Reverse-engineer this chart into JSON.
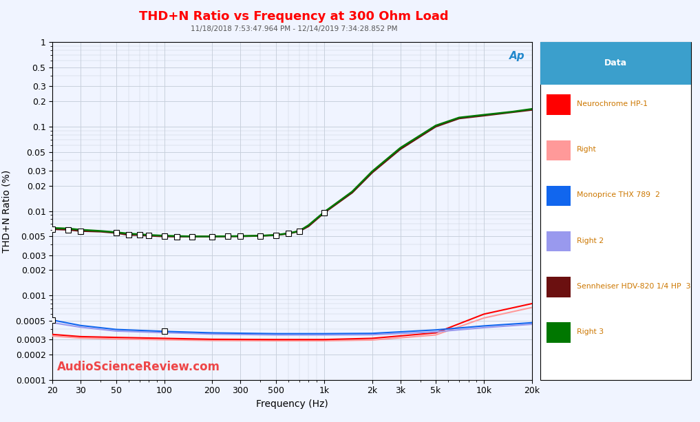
{
  "title": "THD+N Ratio vs Frequency at 300 Ohm Load",
  "title_color": "#FF0000",
  "subtitle": "11/18/2018 7:53:47.964 PM - 12/14/2019 7:34:28.852 PM",
  "subtitle_color": "#555555",
  "xlabel": "Frequency (Hz)",
  "ylabel": "THD+N Ratio (%)",
  "bg_color": "#F0F4FF",
  "grid_color": "#C8D0DC",
  "watermark": "AudioScienceReview.com",
  "watermark_color": "#EE3333",
  "ylim_log": [
    -4,
    0
  ],
  "xlim": [
    20,
    20000
  ],
  "yticks": [
    0.0001,
    0.0002,
    0.0003,
    0.0005,
    0.001,
    0.002,
    0.003,
    0.005,
    0.01,
    0.02,
    0.03,
    0.05,
    0.1,
    0.2,
    0.3,
    0.5,
    1.0
  ],
  "ytick_labels": [
    "0.0001",
    "0.0002",
    "0.0003",
    "0.0005",
    "0.001",
    "0.002",
    "0.003",
    "0.005",
    "0.01",
    "0.02",
    "0.03",
    "0.05",
    "0.1",
    "0.2",
    "0.3",
    "0.5",
    "1"
  ],
  "xticks": [
    20,
    30,
    50,
    100,
    200,
    300,
    500,
    1000,
    2000,
    3000,
    5000,
    10000,
    20000
  ],
  "xtick_labels": [
    "20",
    "30",
    "50",
    "100",
    "200",
    "300",
    "500",
    "1k",
    "2k",
    "3k",
    "5k",
    "10k",
    "20k"
  ],
  "legend_title": "Data",
  "legend_header_color": "#3B9FCC",
  "legend_text_color": "#CC7700",
  "legend_entries": [
    {
      "label": "Neurochrome HP-1",
      "color": "#FF0000"
    },
    {
      "label": "Right",
      "color": "#FF9999"
    },
    {
      "label": "Monoprice THX 789  2",
      "color": "#1166EE"
    },
    {
      "label": "Right 2",
      "color": "#9999EE"
    },
    {
      "label": "Sennheiser HDV-820 1/4 HP  3",
      "color": "#6B1010"
    },
    {
      "label": "Right 3",
      "color": "#007700"
    }
  ],
  "series": {
    "sennheiser_R": {
      "color": "#007700",
      "lw": 1.8,
      "zorder": 4,
      "freqs": [
        20,
        25,
        30,
        40,
        50,
        60,
        70,
        80,
        100,
        120,
        150,
        200,
        250,
        300,
        400,
        500,
        600,
        700,
        800,
        1000,
        1500,
        2000,
        3000,
        5000,
        7000,
        10000,
        15000,
        20000
      ],
      "thd": [
        0.0063,
        0.0062,
        0.006,
        0.0058,
        0.0056,
        0.0054,
        0.0053,
        0.0052,
        0.0051,
        0.00505,
        0.005,
        0.005,
        0.00502,
        0.00505,
        0.0051,
        0.0052,
        0.00545,
        0.0058,
        0.0068,
        0.0097,
        0.017,
        0.0295,
        0.056,
        0.103,
        0.128,
        0.138,
        0.15,
        0.162
      ]
    },
    "sennheiser_L": {
      "color": "#6B1010",
      "lw": 1.8,
      "zorder": 3,
      "freqs": [
        20,
        25,
        30,
        40,
        50,
        60,
        70,
        80,
        100,
        120,
        150,
        200,
        250,
        300,
        400,
        500,
        600,
        700,
        800,
        1000,
        1500,
        2000,
        3000,
        5000,
        7000,
        10000,
        15000,
        20000
      ],
      "thd": [
        0.0061,
        0.006,
        0.0058,
        0.0057,
        0.0055,
        0.0052,
        0.0052,
        0.0051,
        0.005,
        0.00498,
        0.00498,
        0.00498,
        0.005,
        0.00502,
        0.00508,
        0.00518,
        0.0054,
        0.00575,
        0.0066,
        0.0095,
        0.0165,
        0.0285,
        0.054,
        0.1,
        0.125,
        0.135,
        0.148,
        0.158
      ]
    },
    "monoprice_L": {
      "color": "#1166EE",
      "lw": 1.5,
      "zorder": 3,
      "freqs": [
        20,
        30,
        50,
        100,
        200,
        500,
        1000,
        2000,
        5000,
        10000,
        20000
      ],
      "thd": [
        0.00051,
        0.00044,
        0.000395,
        0.000375,
        0.00036,
        0.000352,
        0.000352,
        0.000355,
        0.00039,
        0.000435,
        0.000475
      ]
    },
    "monoprice_R": {
      "color": "#9999EE",
      "lw": 1.5,
      "zorder": 3,
      "freqs": [
        20,
        30,
        50,
        100,
        200,
        500,
        1000,
        2000,
        5000,
        10000,
        20000
      ],
      "thd": [
        0.000475,
        0.00042,
        0.000378,
        0.000362,
        0.000348,
        0.00034,
        0.00034,
        0.000342,
        0.00037,
        0.000415,
        0.000455
      ]
    },
    "neurochrome_L": {
      "color": "#FF0000",
      "lw": 1.5,
      "zorder": 3,
      "freqs": [
        20,
        30,
        50,
        100,
        200,
        500,
        1000,
        2000,
        5000,
        10000,
        20000
      ],
      "thd": [
        0.000345,
        0.000325,
        0.000318,
        0.00031,
        0.000302,
        0.0003,
        0.0003,
        0.00031,
        0.00036,
        0.0006,
        0.0008
      ]
    },
    "neurochrome_R": {
      "color": "#FF9999",
      "lw": 1.5,
      "zorder": 3,
      "freqs": [
        20,
        30,
        50,
        100,
        200,
        500,
        1000,
        2000,
        5000,
        10000,
        20000
      ],
      "thd": [
        0.00033,
        0.000312,
        0.000305,
        0.000298,
        0.000292,
        0.00029,
        0.00029,
        0.000296,
        0.00034,
        0.00054,
        0.00072
      ]
    }
  },
  "markers_senn": {
    "freqs": [
      20,
      25,
      30,
      50,
      60,
      70,
      80,
      100,
      120,
      150,
      200,
      250,
      300,
      400,
      500,
      600,
      700,
      1000
    ],
    "values": [
      0.0061,
      0.006,
      0.0058,
      0.0055,
      0.0052,
      0.0052,
      0.0051,
      0.005,
      0.00498,
      0.00498,
      0.00498,
      0.005,
      0.00502,
      0.00508,
      0.00518,
      0.0054,
      0.00575,
      0.0095
    ]
  },
  "markers_mono": [
    {
      "freq": 20,
      "value": 0.00051
    },
    {
      "freq": 100,
      "value": 0.000375
    }
  ]
}
